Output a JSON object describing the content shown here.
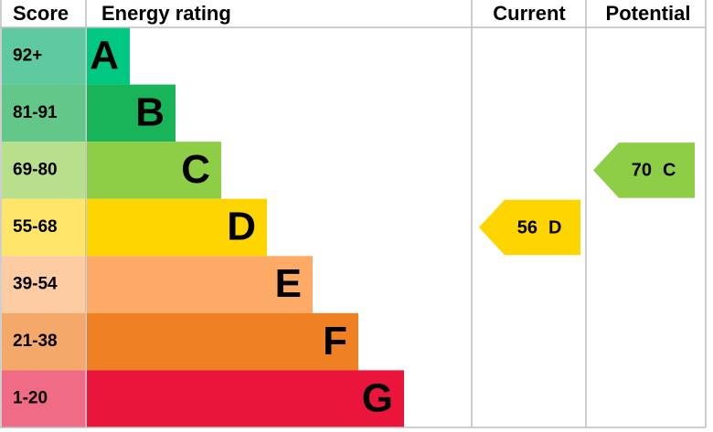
{
  "chart_data": {
    "type": "energy-rating",
    "headers": {
      "score": "Score",
      "rating": "Energy rating",
      "current": "Current",
      "potential": "Potential"
    },
    "bands": [
      {
        "score": "92+",
        "letter": "A",
        "color": "#00c781",
        "score_color": "#5fcaa0"
      },
      {
        "score": "81-91",
        "letter": "B",
        "color": "#19b459",
        "score_color": "#63c78a"
      },
      {
        "score": "69-80",
        "letter": "C",
        "color": "#8dce46",
        "score_color": "#b8e08c"
      },
      {
        "score": "55-68",
        "letter": "D",
        "color": "#ffd500",
        "score_color": "#ffe569"
      },
      {
        "score": "39-54",
        "letter": "E",
        "color": "#fcaa65",
        "score_color": "#fdcca3"
      },
      {
        "score": "21-38",
        "letter": "F",
        "color": "#ef8023",
        "score_color": "#f4a86a"
      },
      {
        "score": "1-20",
        "letter": "G",
        "color": "#e9153b",
        "score_color": "#f06b85"
      }
    ],
    "current": {
      "value": 56,
      "letter": "D"
    },
    "potential": {
      "value": 70,
      "letter": "C"
    }
  }
}
